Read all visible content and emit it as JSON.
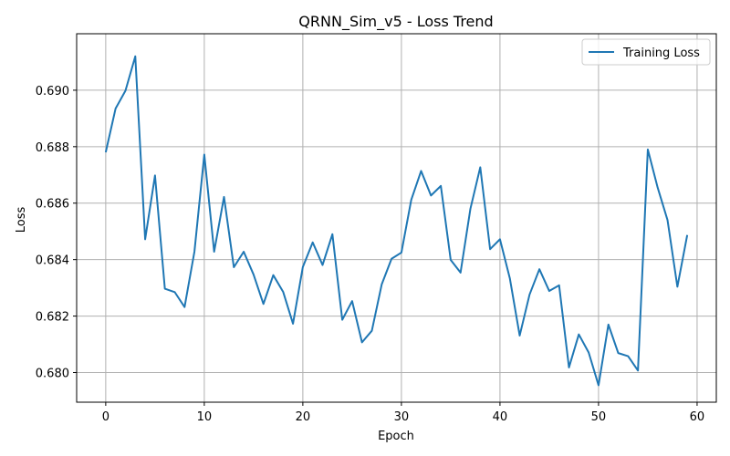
{
  "chart_data": {
    "type": "line",
    "title": "QRNN_Sim_v5 - Loss Trend",
    "xlabel": "Epoch",
    "ylabel": "Loss",
    "xlim": [
      -2.95,
      61.95
    ],
    "ylim": [
      0.67895,
      0.692
    ],
    "xticks": [
      0,
      10,
      20,
      30,
      40,
      50,
      60
    ],
    "yticks": [
      0.68,
      0.682,
      0.684,
      0.686,
      0.688,
      0.69
    ],
    "grid": true,
    "legend_position": "top-right",
    "series": [
      {
        "name": "Training Loss",
        "color": "#1f77b4",
        "x": [
          0,
          1,
          2,
          3,
          4,
          5,
          6,
          7,
          8,
          9,
          10,
          11,
          12,
          13,
          14,
          15,
          16,
          17,
          18,
          19,
          20,
          21,
          22,
          23,
          24,
          25,
          26,
          27,
          28,
          29,
          30,
          31,
          32,
          33,
          34,
          35,
          36,
          37,
          38,
          39,
          40,
          41,
          42,
          43,
          44,
          45,
          46,
          47,
          48,
          49,
          50,
          51,
          52,
          53,
          54,
          55,
          56,
          57,
          58,
          59
        ],
        "values": [
          0.6878,
          0.68935,
          0.68998,
          0.6912,
          0.68472,
          0.68698,
          0.68297,
          0.68285,
          0.68232,
          0.68428,
          0.68772,
          0.68428,
          0.68622,
          0.68373,
          0.68428,
          0.68347,
          0.68243,
          0.68345,
          0.68286,
          0.68173,
          0.68374,
          0.68461,
          0.68381,
          0.6849,
          0.68187,
          0.68253,
          0.68107,
          0.68148,
          0.68312,
          0.68403,
          0.68425,
          0.68612,
          0.68714,
          0.68627,
          0.68661,
          0.68399,
          0.68354,
          0.6858,
          0.68727,
          0.68437,
          0.68472,
          0.68334,
          0.68131,
          0.68276,
          0.68366,
          0.68289,
          0.68309,
          0.68018,
          0.68135,
          0.68071,
          0.67955,
          0.6817,
          0.68069,
          0.68058,
          0.68007,
          0.6879,
          0.68655,
          0.6854,
          0.68304,
          0.68487
        ]
      }
    ]
  }
}
